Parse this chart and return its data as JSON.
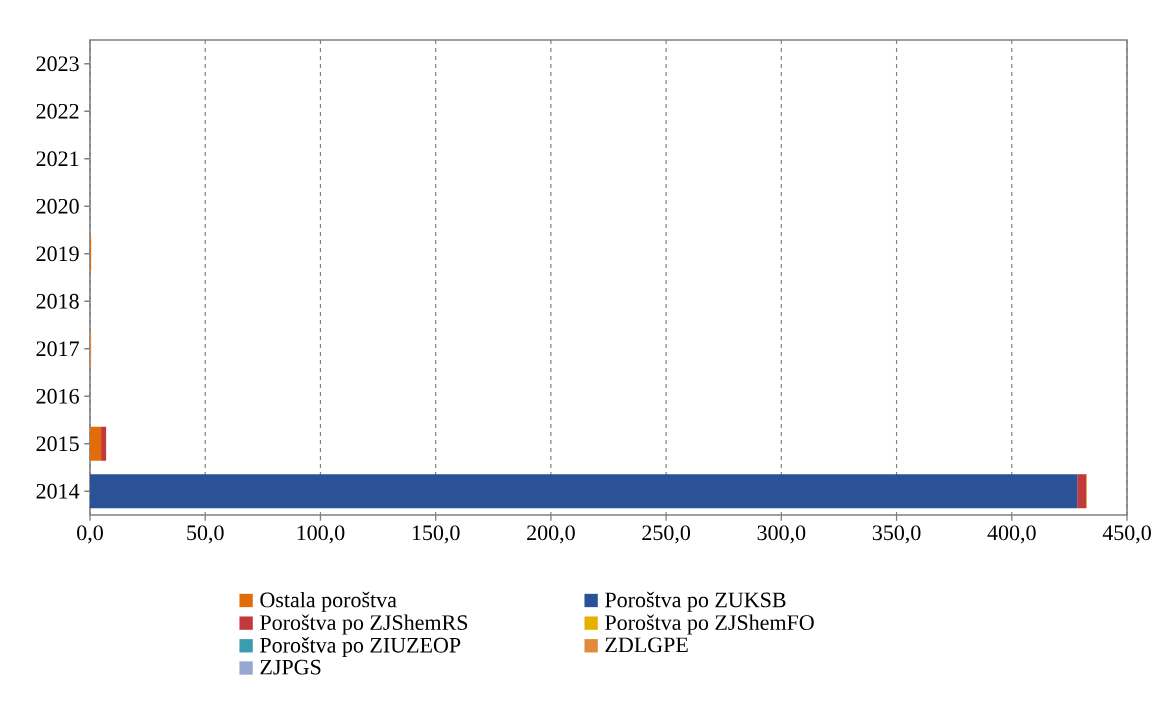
{
  "chart_data": {
    "type": "bar",
    "orientation": "horizontal",
    "stacked": true,
    "categories": [
      "2023",
      "2022",
      "2021",
      "2020",
      "2019",
      "2018",
      "2017",
      "2016",
      "2015",
      "2014"
    ],
    "series": [
      {
        "name": "Ostala poroštva",
        "color": "#e36c0a",
        "values": [
          0,
          0,
          0,
          0,
          0.5,
          0,
          0,
          0,
          4.8,
          0
        ]
      },
      {
        "name": "Poroštva po ZUKSB",
        "color": "#2b5296",
        "values": [
          0,
          0,
          0,
          0,
          0,
          0,
          0,
          0,
          0,
          428.4
        ]
      },
      {
        "name": "Poroštva po ZJShemRS",
        "color": "#c0393b",
        "values": [
          0,
          0,
          0,
          0,
          0,
          0,
          0,
          0,
          2.2,
          3.9
        ]
      },
      {
        "name": "Poroštva po ZJShemFO",
        "color": "#e6b000",
        "values": [
          0,
          0,
          0,
          0,
          0,
          0,
          0,
          0,
          0,
          0.3
        ]
      },
      {
        "name": "Poroštva po ZIUZEOP",
        "color": "#3b9cb0",
        "values": [
          0,
          0,
          0,
          0,
          0,
          0,
          0,
          0,
          0,
          0
        ]
      },
      {
        "name": "ZDLGPE",
        "color": "#e08a3c",
        "values": [
          0,
          0,
          0,
          0,
          0,
          0,
          0.5,
          0,
          0,
          0
        ]
      },
      {
        "name": "ZJPGS",
        "color": "#95a9d0",
        "values": [
          0,
          0,
          0,
          0,
          0,
          0,
          0,
          0,
          0,
          0
        ]
      }
    ],
    "xlim": [
      0,
      450
    ],
    "xticks": [
      {
        "value": 0,
        "label": "0,0"
      },
      {
        "value": 50,
        "label": "50,0"
      },
      {
        "value": 100,
        "label": "100,0"
      },
      {
        "value": 150,
        "label": "150,0"
      },
      {
        "value": 200,
        "label": "200,0"
      },
      {
        "value": 250,
        "label": "250,0"
      },
      {
        "value": 300,
        "label": "300,0"
      },
      {
        "value": 350,
        "label": "350,0"
      },
      {
        "value": 400,
        "label": "400,0"
      },
      {
        "value": 450,
        "label": "450,0"
      }
    ],
    "grid": "x",
    "legend": "bottom"
  }
}
